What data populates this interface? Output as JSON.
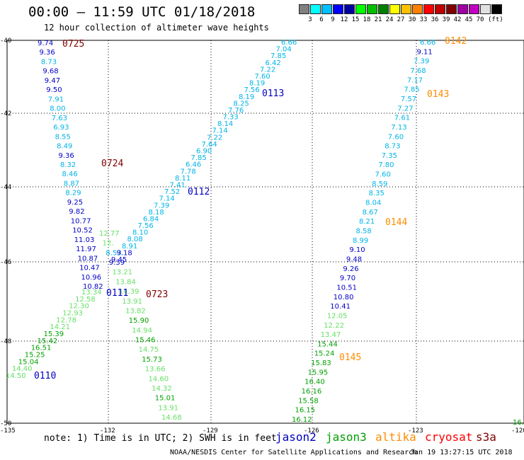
{
  "header": {
    "title": "00:00 — 11:59 UTC 01/18/2018",
    "subtitle": "12 hour collection of altimeter wave heights"
  },
  "colorbar": {
    "unit": "(ft)",
    "colors": [
      "#808080",
      "#00ffff",
      "#00c0ff",
      "#0000ff",
      "#0000a0",
      "#00ff00",
      "#00c000",
      "#008000",
      "#ffff00",
      "#ffc000",
      "#ff8000",
      "#ff0000",
      "#c00000",
      "#800000",
      "#a000a0",
      "#c000c0",
      "#e0e0e0",
      "#000000"
    ],
    "labels": [
      "3",
      "6",
      "9",
      "12",
      "15",
      "18",
      "21",
      "24",
      "27",
      "30",
      "33",
      "36",
      "39",
      "42",
      "45",
      "70"
    ]
  },
  "map": {
    "lat_labels": [
      "-40",
      "-42",
      "-44",
      "-46",
      "-48",
      "-50"
    ],
    "lon_labels": [
      "-135",
      "-132",
      "-129",
      "-126",
      "-123",
      "-120"
    ],
    "tracks": [
      {
        "label": "0725",
        "label_color": "#800000",
        "values": [
          "9.74",
          "9.36",
          "8.73",
          "9.68",
          "9.47",
          "9.50",
          "7.91",
          "8.00",
          "7.63",
          "6.93",
          "8.55",
          "8.49",
          "9.36",
          "8.32",
          "8.46",
          "8.87",
          "8.29",
          "9.25",
          "9.82",
          "10.77",
          "10.52",
          "11.03",
          "11.97",
          "10.87",
          "10.47",
          "10.96",
          "10.82"
        ]
      },
      {
        "label": "0724",
        "label_color": "#800000",
        "values": []
      },
      {
        "label": "0723",
        "label_color": "#800000",
        "values": [
          "12.77",
          "12.",
          "8.53",
          "9.39",
          "13.21",
          "13.84",
          "14.39",
          "13.91",
          "13.82",
          "15.90",
          "14.94",
          "15.46",
          "14.75",
          "15.73",
          "13.66",
          "14.60",
          "14.32",
          "15.01",
          "13.91",
          "14.68"
        ]
      },
      {
        "label": "0113",
        "label_color": "#0000c0",
        "values": [
          "6.66",
          "7.04",
          "7.85",
          "6.42",
          "7.22",
          "7.60",
          "8.19",
          "7.56",
          "8.19",
          "8.25",
          "7.76",
          "7.33",
          "8.14",
          "7.14",
          "7.22",
          "7.64",
          "6.90",
          "7.85",
          "6.46",
          "7.78",
          "8.11",
          "7.41",
          "7.52",
          "7.14",
          "7.39",
          "8.18",
          "6.84",
          "7.56",
          "8.10",
          "8.08",
          "8.91",
          "9.18",
          "9.45"
        ]
      },
      {
        "label": "0112",
        "label_color": "#0000c0",
        "values": []
      },
      {
        "label": "0111",
        "label_color": "#0000c0",
        "values": [
          "13.34",
          "12.58",
          "12.30",
          "12.93",
          "12.78",
          "14.21",
          "15.39",
          "15.42",
          "16.51",
          "15.25",
          "15.04",
          "14.40",
          "14.50"
        ]
      },
      {
        "label": "0110",
        "label_color": "#0000c0",
        "values": []
      },
      {
        "label": "0142",
        "label_color": "#ff8c00",
        "values": [
          "6.66",
          "9.11",
          "7.39",
          "7.68",
          "7.17",
          "7.85",
          "7.57",
          "7.27",
          "7.61",
          "7.13",
          "7.60",
          "8.73",
          "7.35",
          "7.80",
          "7.60",
          "8.59",
          "8.35",
          "8.04",
          "8.67",
          "8.21",
          "8.58",
          "8.99",
          "9.10",
          "9.48",
          "9.26",
          "9.70",
          "10.51",
          "10.80",
          "10.41",
          "12.05",
          "12.22",
          "13.47",
          "15.44",
          "15.24",
          "15.83",
          "15.95",
          "16.40",
          "16.16",
          "15.58",
          "16.15",
          "16.12"
        ]
      },
      {
        "label": "0143",
        "label_color": "#ff8c00",
        "values": []
      },
      {
        "label": "0144",
        "label_color": "#ff8c00",
        "values": []
      },
      {
        "label": "0145",
        "label_color": "#ff8c00",
        "values": []
      }
    ],
    "edge_value": "16."
  },
  "footer": {
    "note": "note: 1) Time is in UTC; 2) SWH is in feet",
    "legend": [
      {
        "name": "jason2",
        "color": "#0000c0"
      },
      {
        "name": "jason3",
        "color": "#00a000"
      },
      {
        "name": "altika",
        "color": "#ff8c00"
      },
      {
        "name": "cryosat",
        "color": "#ff0000"
      },
      {
        "name": "s3a",
        "color": "#800000"
      }
    ],
    "credit": "NOAA/NESDIS Center for Satellite Applications and Research",
    "timestamp": "Jan 19 13:27:15 UTC 2018"
  }
}
